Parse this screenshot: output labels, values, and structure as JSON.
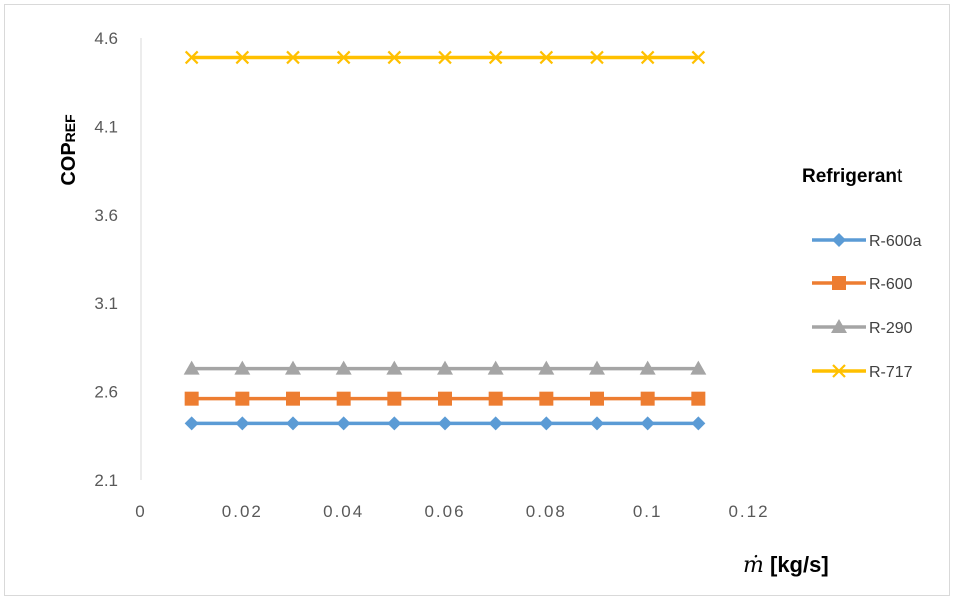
{
  "chart_data": {
    "type": "line",
    "title": "",
    "ylabel": "COPREF",
    "ylabel_main": "COP",
    "ylabel_sub": "REF",
    "xlabel_symbol": "ṁ",
    "xlabel_rest": " [kg/s]",
    "xlim": [
      0,
      0.12
    ],
    "ylim": [
      2.1,
      4.6
    ],
    "x_ticks": [
      "0",
      "0.02",
      "0.04",
      "0.06",
      "0.08",
      "0.1",
      "0.12"
    ],
    "y_ticks": [
      "2.1",
      "2.6",
      "3.1",
      "3.6",
      "4.1",
      "4.6"
    ],
    "grid": false,
    "legend_position": "right",
    "legend_title_bold": "Refrigeran",
    "legend_title_rest": "t",
    "x": [
      0.01,
      0.02,
      0.03,
      0.04,
      0.05,
      0.06,
      0.07,
      0.08,
      0.09,
      0.1,
      0.11
    ],
    "series": [
      {
        "name": "R-600a",
        "color": "#5b9bd5",
        "marker": "diamond",
        "values": [
          2.42,
          2.42,
          2.42,
          2.42,
          2.42,
          2.42,
          2.42,
          2.42,
          2.42,
          2.42,
          2.42
        ]
      },
      {
        "name": "R-600",
        "color": "#ed7d31",
        "marker": "square",
        "values": [
          2.56,
          2.56,
          2.56,
          2.56,
          2.56,
          2.56,
          2.56,
          2.56,
          2.56,
          2.56,
          2.56
        ]
      },
      {
        "name": "R-290",
        "color": "#a5a5a5",
        "marker": "triangle",
        "values": [
          2.73,
          2.73,
          2.73,
          2.73,
          2.73,
          2.73,
          2.73,
          2.73,
          2.73,
          2.73,
          2.73
        ]
      },
      {
        "name": "R-717",
        "color": "#ffc000",
        "marker": "x",
        "values": [
          4.49,
          4.49,
          4.49,
          4.49,
          4.49,
          4.49,
          4.49,
          4.49,
          4.49,
          4.49,
          4.49
        ]
      }
    ]
  }
}
